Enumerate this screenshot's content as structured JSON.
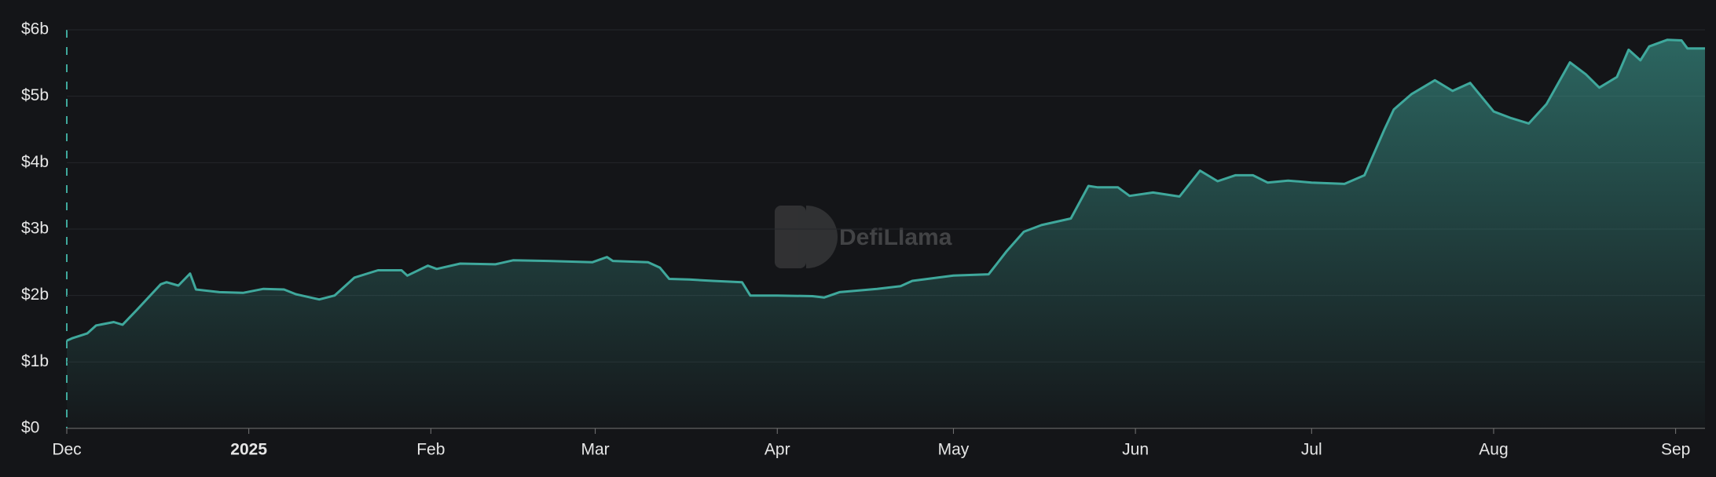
{
  "chart_data": {
    "type": "area",
    "watermark": "DefiLlama",
    "color": "#3fa89c",
    "grid": true,
    "x": [
      0,
      1,
      3.5,
      5,
      8,
      9.5,
      12,
      16,
      17,
      19,
      21,
      22,
      26,
      30,
      33.5,
      37,
      39,
      43,
      45.6,
      49,
      53,
      57,
      58,
      61.5,
      63,
      67,
      73,
      76,
      82,
      89.5,
      92,
      93,
      99,
      101,
      102.6,
      106,
      110,
      115,
      116.4,
      121,
      127,
      129,
      131.6,
      138,
      142,
      144,
      151,
      157,
      160,
      163,
      166,
      171,
      174,
      175.5,
      179,
      181,
      185,
      189.5,
      193,
      196,
      199,
      202,
      204.5,
      208,
      212,
      217.6,
      221,
      224.4,
      226,
      229,
      233,
      236,
      239,
      243,
      246,
      249,
      252,
      256,
      258.7,
      261,
      264,
      266,
      268,
      269.5,
      272.6,
      275,
      276,
      279
    ],
    "values": [
      1.32,
      1.36,
      1.43,
      1.55,
      1.6,
      1.56,
      1.79,
      2.17,
      2.2,
      2.15,
      2.33,
      2.09,
      2.05,
      2.04,
      2.1,
      2.09,
      2.02,
      1.94,
      2.0,
      2.27,
      2.38,
      2.38,
      2.3,
      2.45,
      2.4,
      2.48,
      2.47,
      2.53,
      2.52,
      2.5,
      2.58,
      2.52,
      2.5,
      2.42,
      2.25,
      2.24,
      2.22,
      2.2,
      2.0,
      2.0,
      1.99,
      1.97,
      2.05,
      2.1,
      2.14,
      2.22,
      2.3,
      2.32,
      2.66,
      2.96,
      3.06,
      3.16,
      3.65,
      3.63,
      3.63,
      3.5,
      3.55,
      3.49,
      3.88,
      3.72,
      3.81,
      3.81,
      3.7,
      3.73,
      3.7,
      3.68,
      3.81,
      4.5,
      4.8,
      5.03,
      5.24,
      5.08,
      5.2,
      4.77,
      4.67,
      4.59,
      4.88,
      5.51,
      5.33,
      5.13,
      5.29,
      5.7,
      5.54,
      5.75,
      5.85,
      5.84,
      5.72,
      5.72
    ],
    "xlim": [
      0,
      279
    ],
    "ylim": [
      0,
      6
    ],
    "xticks": [
      {
        "value": 0,
        "label": "Dec"
      },
      {
        "value": 31,
        "label": "2025"
      },
      {
        "value": 62,
        "label": "Feb"
      },
      {
        "value": 90,
        "label": "Mar"
      },
      {
        "value": 121,
        "label": "Apr"
      },
      {
        "value": 151,
        "label": "May"
      },
      {
        "value": 182,
        "label": "Jun"
      },
      {
        "value": 212,
        "label": "Jul"
      },
      {
        "value": 243,
        "label": "Aug"
      },
      {
        "value": 274,
        "label": "Sep"
      }
    ],
    "yticks": [
      {
        "value": 0,
        "label": "$0"
      },
      {
        "value": 1,
        "label": "$1b"
      },
      {
        "value": 2,
        "label": "$2b"
      },
      {
        "value": 3,
        "label": "$3b"
      },
      {
        "value": 4,
        "label": "$4b"
      },
      {
        "value": 5,
        "label": "$5b"
      },
      {
        "value": 6,
        "label": "$6b"
      }
    ]
  }
}
